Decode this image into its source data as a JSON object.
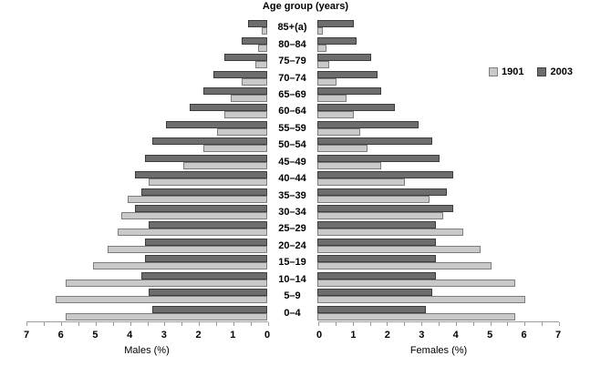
{
  "title": "Age group (years)",
  "legend": {
    "items": [
      {
        "label": "1901",
        "color": "#c9c9c9",
        "border": "#7e7e7e"
      },
      {
        "label": "2003",
        "color": "#6d6d6d",
        "border": "#3d3d3d"
      }
    ]
  },
  "axes": {
    "male_title": "Males (%)",
    "female_title": "Females (%)",
    "male_tick_labels": [
      "7",
      "6",
      "5",
      "4",
      "3",
      "2",
      "1",
      "0"
    ],
    "female_tick_labels": [
      "0",
      "1",
      "2",
      "3",
      "4",
      "5",
      "6",
      "7"
    ],
    "minor_tick_step": 0.5,
    "max": 7
  },
  "chart_data": {
    "type": "bar",
    "subtype": "population-pyramid",
    "title": "Age group (years)",
    "xlabel_left": "Males (%)",
    "xlabel_right": "Females (%)",
    "xlim": [
      0,
      7
    ],
    "grid": false,
    "legend_position": "right",
    "age_groups": [
      "85+(a)",
      "80–84",
      "75–79",
      "70–74",
      "65–69",
      "60–64",
      "55–59",
      "50–54",
      "45–49",
      "40–44",
      "35–39",
      "30–34",
      "25–29",
      "20–24",
      "15–19",
      "10–14",
      "5–9",
      "0–4"
    ],
    "series": [
      {
        "name": "1901",
        "side": "males",
        "color": "#c9c9c9",
        "values": [
          0.1,
          0.2,
          0.3,
          0.7,
          1.0,
          1.2,
          1.4,
          1.8,
          2.4,
          3.4,
          4.0,
          4.2,
          4.3,
          4.6,
          5.0,
          5.8,
          6.1,
          5.8
        ]
      },
      {
        "name": "2003",
        "side": "males",
        "color": "#6d6d6d",
        "values": [
          0.5,
          0.7,
          1.2,
          1.5,
          1.8,
          2.2,
          2.9,
          3.3,
          3.5,
          3.8,
          3.6,
          3.8,
          3.4,
          3.5,
          3.5,
          3.6,
          3.4,
          3.3
        ]
      },
      {
        "name": "1901",
        "side": "females",
        "color": "#c9c9c9",
        "values": [
          0.1,
          0.2,
          0.3,
          0.5,
          0.8,
          1.0,
          1.2,
          1.4,
          1.8,
          2.5,
          3.2,
          3.6,
          4.2,
          4.7,
          5.0,
          5.7,
          6.0,
          5.7
        ]
      },
      {
        "name": "2003",
        "side": "females",
        "color": "#6d6d6d",
        "values": [
          1.0,
          1.1,
          1.5,
          1.7,
          1.8,
          2.2,
          2.9,
          3.3,
          3.5,
          3.9,
          3.7,
          3.9,
          3.4,
          3.4,
          3.4,
          3.4,
          3.3,
          3.1
        ]
      }
    ]
  }
}
